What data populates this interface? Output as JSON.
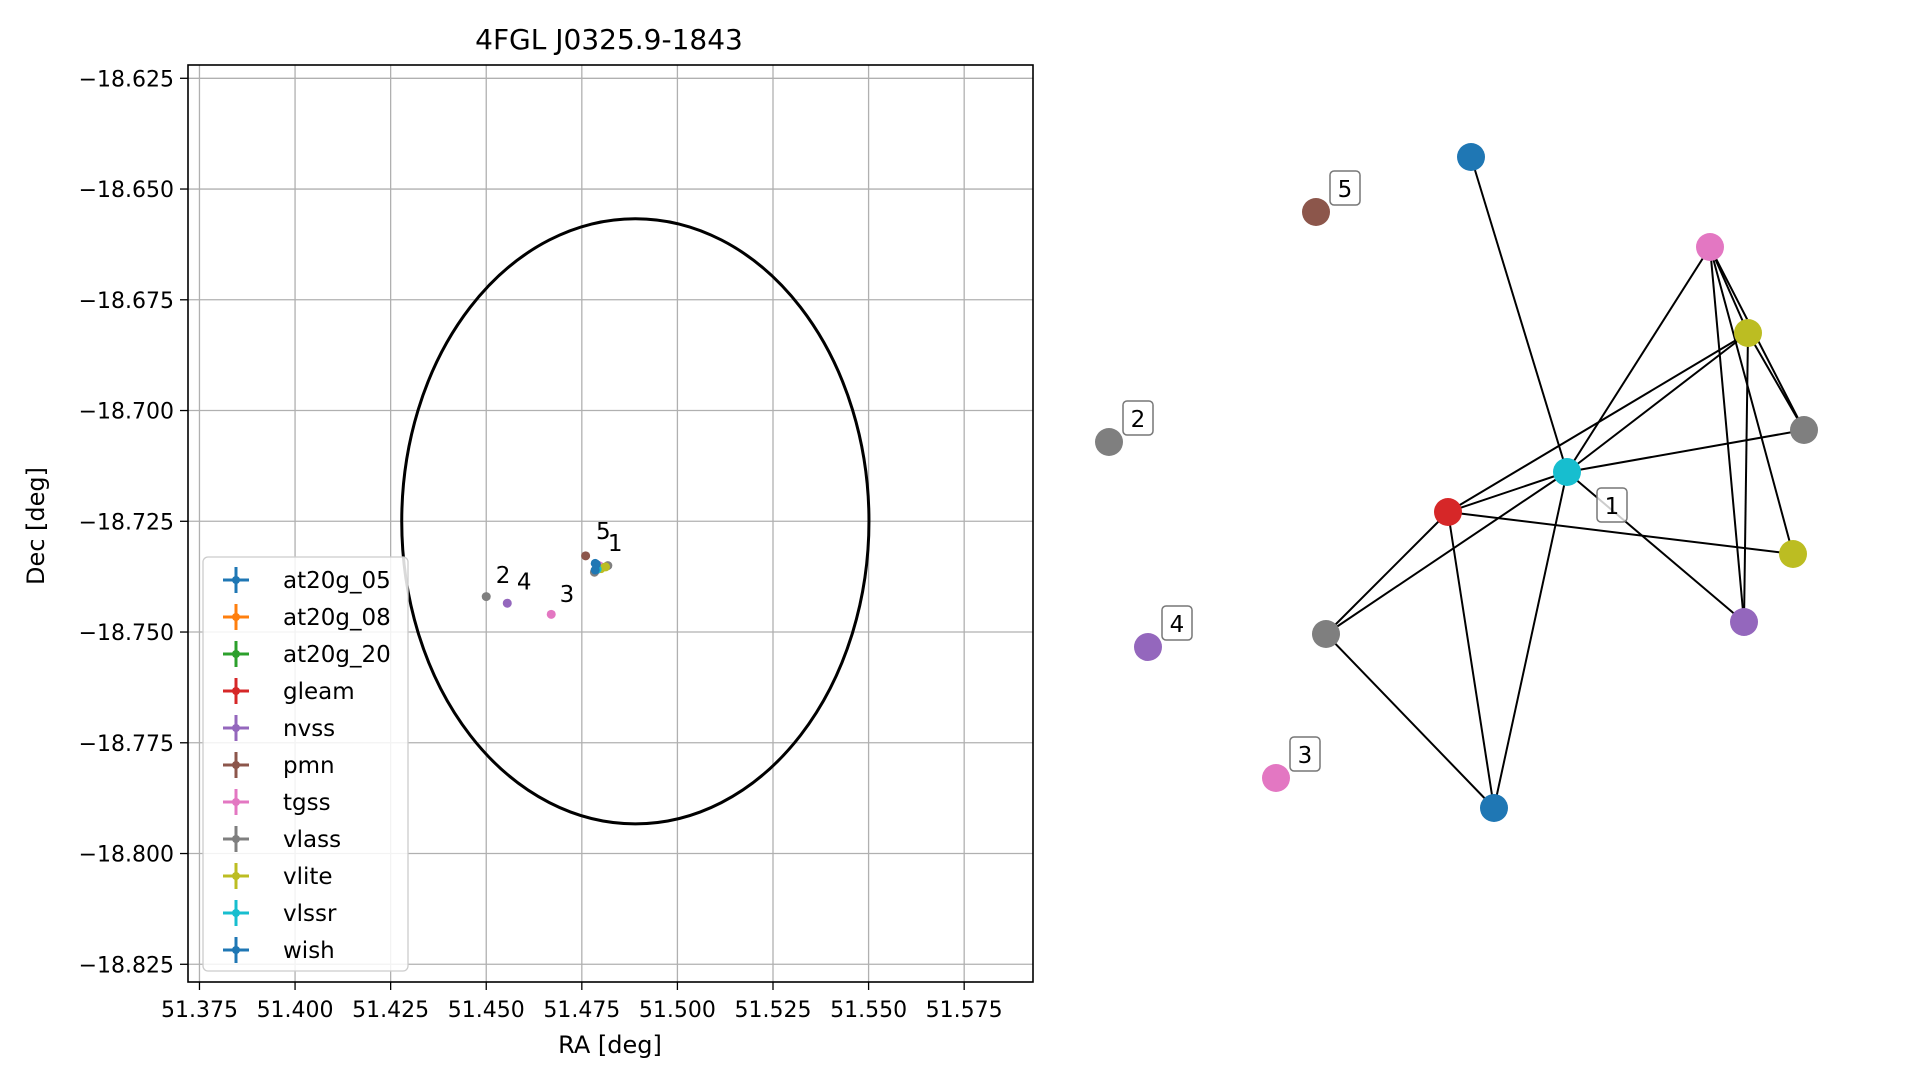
{
  "chart_data": [
    {
      "type": "scatter",
      "title": "4FGL J0325.9-1843",
      "xlabel": "RA [deg]",
      "ylabel": "Dec [deg]",
      "xlim": [
        51.372,
        51.593
      ],
      "ylim": [
        -18.829,
        -18.622
      ],
      "xticks": [
        51.375,
        51.4,
        51.425,
        51.45,
        51.475,
        51.5,
        51.525,
        51.55,
        51.575
      ],
      "xtick_labels": [
        "51.375",
        "51.400",
        "51.425",
        "51.450",
        "51.475",
        "51.500",
        "51.525",
        "51.550",
        "51.575"
      ],
      "yticks": [
        -18.625,
        -18.65,
        -18.675,
        -18.7,
        -18.725,
        -18.75,
        -18.775,
        -18.8,
        -18.825
      ],
      "ytick_labels": [
        "−18.625",
        "−18.650",
        "−18.675",
        "−18.700",
        "−18.725",
        "−18.750",
        "−18.775",
        "−18.800",
        "−18.825"
      ],
      "grid": true,
      "legend_position": "lower-left",
      "ellipse": {
        "center": [
          51.489,
          -18.725
        ],
        "ra_halfwidth": 0.0611,
        "dec_halfheight": 0.0683,
        "color": "#000000"
      },
      "series": [
        {
          "name": "at20g_05",
          "color": "#1f77b4",
          "points": [
            [
              51.4785,
              -18.7345
            ]
          ]
        },
        {
          "name": "at20g_08",
          "color": "#ff7f0e",
          "points": [
            [
              51.4795,
              -18.7355
            ]
          ]
        },
        {
          "name": "at20g_20",
          "color": "#2ca02c",
          "points": [
            [
              51.48,
              -18.7353
            ]
          ]
        },
        {
          "name": "gleam",
          "color": "#d62728",
          "points": [
            [
              51.479,
              -18.7352
            ]
          ]
        },
        {
          "name": "nvss",
          "color": "#9467bd",
          "points": [
            [
              51.4555,
              -18.7435
            ],
            [
              51.4788,
              -18.736
            ]
          ]
        },
        {
          "name": "pmn",
          "color": "#8c564b",
          "points": [
            [
              51.476,
              -18.7328
            ]
          ]
        },
        {
          "name": "tgss",
          "color": "#e377c2",
          "points": [
            [
              51.467,
              -18.746
            ],
            [
              51.4795,
              -18.735
            ]
          ]
        },
        {
          "name": "vlass",
          "color": "#7f7f7f",
          "points": [
            [
              51.45,
              -18.742
            ],
            [
              51.4783,
              -18.7365
            ],
            [
              51.4818,
              -18.735
            ]
          ]
        },
        {
          "name": "vlite",
          "color": "#bcbd22",
          "points": [
            [
              51.48,
              -18.7357
            ],
            [
              51.4812,
              -18.7353
            ]
          ]
        },
        {
          "name": "vlssr",
          "color": "#17becf",
          "points": [
            [
              51.479,
              -18.7358
            ]
          ]
        },
        {
          "name": "wish",
          "color": "#1f77b4",
          "points": [
            [
              51.4788,
              -18.7347
            ],
            [
              51.4785,
              -18.736
            ]
          ]
        }
      ],
      "point_labels": [
        {
          "text": "1",
          "x": 51.4818,
          "y": -18.7317
        },
        {
          "text": "2",
          "x": 51.4525,
          "y": -18.7389
        },
        {
          "text": "3",
          "x": 51.4692,
          "y": -18.7432
        },
        {
          "text": "4",
          "x": 51.458,
          "y": -18.7404
        },
        {
          "text": "5",
          "x": 51.4787,
          "y": -18.729
        }
      ]
    },
    {
      "type": "network",
      "nodes": [
        {
          "id": "n_blue_top",
          "color": "#1f77b4"
        },
        {
          "id": "n_brown",
          "color": "#8c564b",
          "label": "5"
        },
        {
          "id": "n_pink_top",
          "color": "#e377c2"
        },
        {
          "id": "n_olive_top",
          "color": "#bcbd22"
        },
        {
          "id": "n_gray_2",
          "color": "#7f7f7f",
          "label": "2"
        },
        {
          "id": "n_gray_right",
          "color": "#7f7f7f"
        },
        {
          "id": "n_cyan",
          "color": "#17becf",
          "label": "1"
        },
        {
          "id": "n_red",
          "color": "#d62728"
        },
        {
          "id": "n_olive_right",
          "color": "#bcbd22"
        },
        {
          "id": "n_purple_4",
          "color": "#9467bd",
          "label": "4"
        },
        {
          "id": "n_gray_mid",
          "color": "#7f7f7f"
        },
        {
          "id": "n_purple_right",
          "color": "#9467bd"
        },
        {
          "id": "n_pink_3",
          "color": "#e377c2",
          "label": "3"
        },
        {
          "id": "n_blue_bottom",
          "color": "#1f77b4"
        }
      ],
      "edges": [
        [
          "n_blue_top",
          "n_cyan"
        ],
        [
          "n_pink_top",
          "n_olive_top"
        ],
        [
          "n_pink_top",
          "n_gray_right"
        ],
        [
          "n_pink_top",
          "n_olive_right"
        ],
        [
          "n_pink_top",
          "n_purple_right"
        ],
        [
          "n_pink_top",
          "n_cyan"
        ],
        [
          "n_olive_top",
          "n_gray_right"
        ],
        [
          "n_olive_top",
          "n_purple_right"
        ],
        [
          "n_olive_top",
          "n_cyan"
        ],
        [
          "n_olive_top",
          "n_red"
        ],
        [
          "n_cyan",
          "n_gray_right"
        ],
        [
          "n_cyan",
          "n_red"
        ],
        [
          "n_cyan",
          "n_purple_right"
        ],
        [
          "n_cyan",
          "n_gray_mid"
        ],
        [
          "n_cyan",
          "n_blue_bottom"
        ],
        [
          "n_red",
          "n_olive_right"
        ],
        [
          "n_red",
          "n_gray_mid"
        ],
        [
          "n_red",
          "n_blue_bottom"
        ],
        [
          "n_gray_mid",
          "n_blue_bottom"
        ]
      ]
    }
  ]
}
